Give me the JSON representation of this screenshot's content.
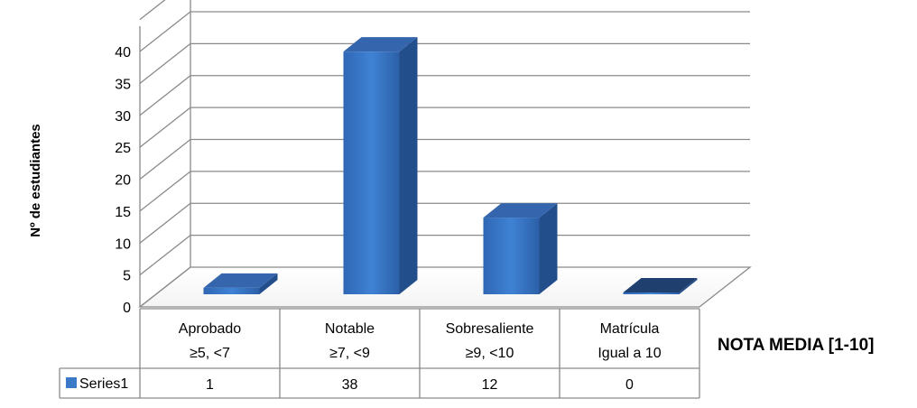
{
  "chart_data": {
    "type": "bar",
    "title": "",
    "ylabel": "Nº de estudiantes",
    "xlabel": "NOTA MEDIA [1-10]",
    "ylim": [
      0,
      40
    ],
    "yticks": [
      "0",
      "5",
      "10",
      "15",
      "20",
      "25",
      "30",
      "35",
      "40"
    ],
    "categories": [
      {
        "line1": "Aprobado",
        "line2": "≥5, <7"
      },
      {
        "line1": "Notable",
        "line2": "≥7, <9"
      },
      {
        "line1": "Sobresaliente",
        "line2": "≥9, <10"
      },
      {
        "line1": "Matrícula",
        "line2": "Igual a 10"
      }
    ],
    "series": [
      {
        "name": "Series1",
        "values": [
          1,
          38,
          12,
          0
        ],
        "value_labels": [
          "1",
          "38",
          "12",
          "0"
        ],
        "color": "#3a78c8"
      }
    ],
    "grid": true,
    "legend": "data-table"
  }
}
